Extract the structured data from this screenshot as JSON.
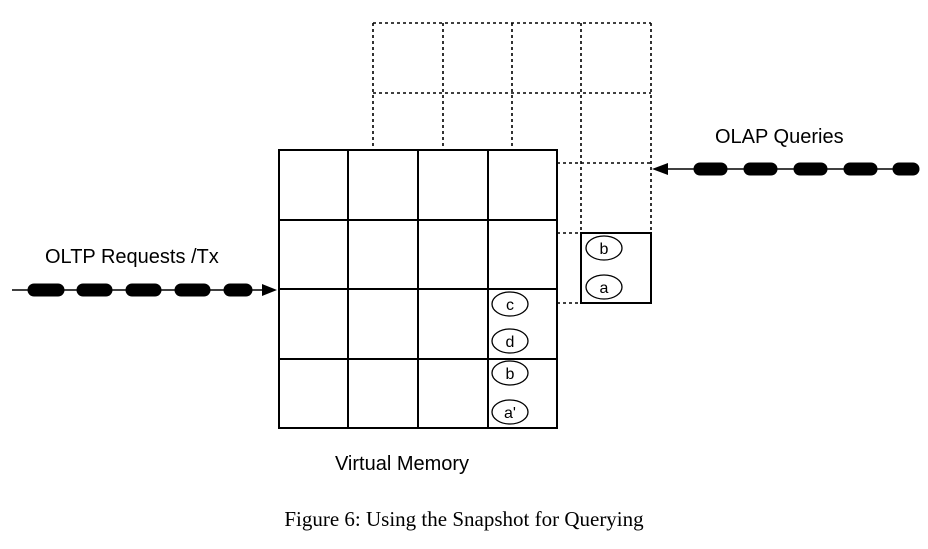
{
  "labels": {
    "oltp": "OLTP Requests /Tx",
    "olap": "OLAP Queries",
    "memory": "Virtual Memory"
  },
  "caption": "Figure 6: Using the Snapshot for Querying",
  "snapshot_items": [
    "b",
    "a"
  ],
  "memory_items": [
    "c",
    "d",
    "b",
    "a'"
  ]
}
